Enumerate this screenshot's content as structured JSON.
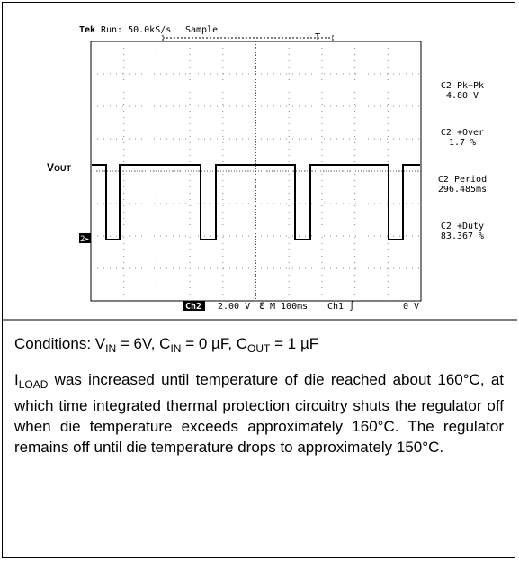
{
  "scope": {
    "header": {
      "brand": "Tek",
      "status": "Run: 50.0kS/s",
      "mode": "Sample",
      "trigger_marker": "T"
    },
    "signal_label": {
      "main": "V",
      "sub": "OUT"
    },
    "channel_marker": "2▸",
    "measurements": [
      {
        "name": "C2 Pk−Pk",
        "value": "4.80 V"
      },
      {
        "name": "C2 +Over",
        "value": "1.7 %"
      },
      {
        "name": "C2 Period",
        "value": "296.485ms"
      },
      {
        "name": "C2 +Duty",
        "value": "83.367 %"
      }
    ],
    "footer": {
      "channel": "Ch2",
      "scale": "2.00 V",
      "bw": "ℇ",
      "timebase": "M 100ms",
      "trigger": "Ch1 ∫",
      "level": "0 V"
    }
  },
  "caption": {
    "conditions": [
      "Conditions: V",
      "IN",
      " = 6V, C",
      "IN",
      " = 0 µF, C",
      "OUT",
      " = 1 µF"
    ],
    "description": [
      "I",
      "LOAD",
      " was increased until temperature of die reached about 160°C, at which time integrated thermal protection circuitry shuts the regulator off when die temperature exceeds approximately 160°C. The regulator remains off until die temperature drops to approximately 150°C."
    ]
  }
}
